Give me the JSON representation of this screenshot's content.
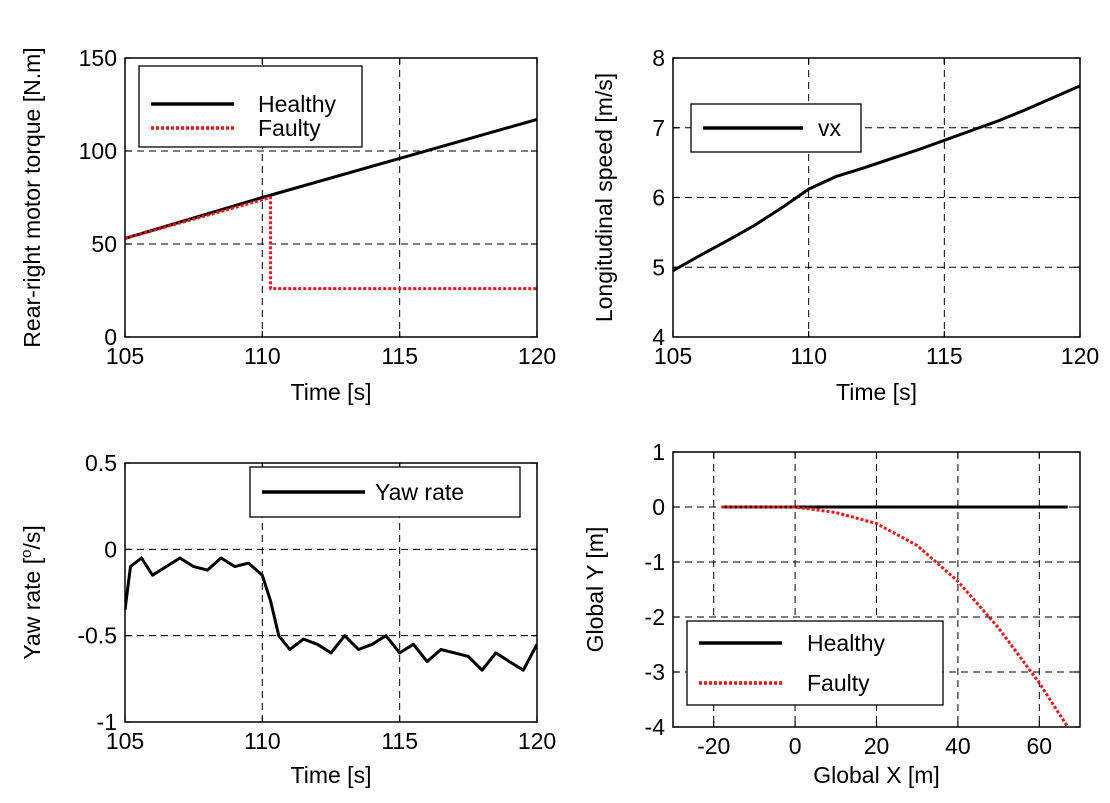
{
  "chart_data": [
    {
      "id": "torque",
      "type": "line",
      "xlabel": "Time [s]",
      "ylabel": "Rear-right motor torque [N.m]",
      "xlim": [
        105,
        120
      ],
      "ylim": [
        0,
        150
      ],
      "xticks": [
        105,
        110,
        115,
        120
      ],
      "yticks": [
        0,
        50,
        100,
        150
      ],
      "grid": true,
      "legend_position": "top-left",
      "series": [
        {
          "name": "Healthy",
          "color": "#000000",
          "style": "solid",
          "x": [
            105,
            110,
            115,
            120
          ],
          "y": [
            53,
            75,
            96,
            117
          ]
        },
        {
          "name": "Faulty",
          "color": "#e8161b",
          "style": "dotted",
          "x": [
            105,
            110.3,
            110.3,
            120
          ],
          "y": [
            53,
            75,
            26,
            26
          ]
        }
      ]
    },
    {
      "id": "speed",
      "type": "line",
      "xlabel": "Time [s]",
      "ylabel": "Longitudinal speed [m/s]",
      "xlim": [
        105,
        120
      ],
      "ylim": [
        4,
        8
      ],
      "xticks": [
        105,
        110,
        115,
        120
      ],
      "yticks": [
        4,
        5,
        6,
        7,
        8
      ],
      "grid": true,
      "legend_position": "top-left",
      "series": [
        {
          "name": "vx",
          "color": "#000000",
          "style": "solid",
          "x": [
            105,
            106,
            107,
            108,
            109,
            110,
            111,
            112,
            113,
            114,
            115,
            116,
            117,
            118,
            119,
            120
          ],
          "y": [
            4.95,
            5.17,
            5.38,
            5.6,
            5.85,
            6.12,
            6.3,
            6.42,
            6.55,
            6.68,
            6.82,
            6.96,
            7.1,
            7.26,
            7.43,
            7.6
          ]
        }
      ]
    },
    {
      "id": "yaw",
      "type": "line",
      "xlabel": "Time [s]",
      "ylabel": "Yaw rate [°/s]",
      "ylabel_main": "Yaw rate [",
      "ylabel_sup": "o",
      "ylabel_tail": "/s]",
      "xlim": [
        105,
        120
      ],
      "ylim": [
        -1,
        0.5
      ],
      "xticks": [
        105,
        110,
        115,
        120
      ],
      "yticks": [
        -1,
        -0.5,
        0,
        0.5
      ],
      "grid": true,
      "legend_position": "top-right",
      "series": [
        {
          "name": "Yaw rate",
          "color": "#000000",
          "style": "solid",
          "x": [
            105,
            105.2,
            105.6,
            106,
            106.5,
            107,
            107.5,
            108,
            108.5,
            109,
            109.5,
            110,
            110.3,
            110.6,
            111,
            111.5,
            112,
            112.5,
            113,
            113.5,
            114,
            114.5,
            115,
            115.5,
            116,
            116.5,
            117,
            117.5,
            118,
            118.5,
            119,
            119.5,
            120
          ],
          "y": [
            -0.35,
            -0.1,
            -0.05,
            -0.15,
            -0.1,
            -0.05,
            -0.1,
            -0.12,
            -0.05,
            -0.1,
            -0.08,
            -0.15,
            -0.3,
            -0.5,
            -0.58,
            -0.52,
            -0.55,
            -0.6,
            -0.5,
            -0.58,
            -0.55,
            -0.5,
            -0.6,
            -0.55,
            -0.65,
            -0.58,
            -0.6,
            -0.62,
            -0.7,
            -0.6,
            -0.65,
            -0.7,
            -0.55
          ]
        }
      ]
    },
    {
      "id": "trajectory",
      "type": "line",
      "xlabel": "Global X [m]",
      "ylabel": "Global Y [m]",
      "xlim": [
        -30,
        70
      ],
      "ylim": [
        -4,
        1
      ],
      "xticks": [
        -20,
        0,
        20,
        40,
        60
      ],
      "yticks": [
        -4,
        -3,
        -2,
        -1,
        0,
        1
      ],
      "grid": true,
      "legend_position": "bottom-left",
      "series": [
        {
          "name": "Healthy",
          "color": "#000000",
          "style": "solid",
          "x": [
            -18,
            67
          ],
          "y": [
            0,
            0
          ]
        },
        {
          "name": "Faulty",
          "color": "#e8161b",
          "style": "dotted",
          "x": [
            -18,
            0,
            10,
            20,
            30,
            40,
            50,
            55,
            60,
            67
          ],
          "y": [
            0,
            0,
            -0.1,
            -0.3,
            -0.7,
            -1.35,
            -2.2,
            -2.7,
            -3.2,
            -4
          ]
        }
      ]
    }
  ]
}
